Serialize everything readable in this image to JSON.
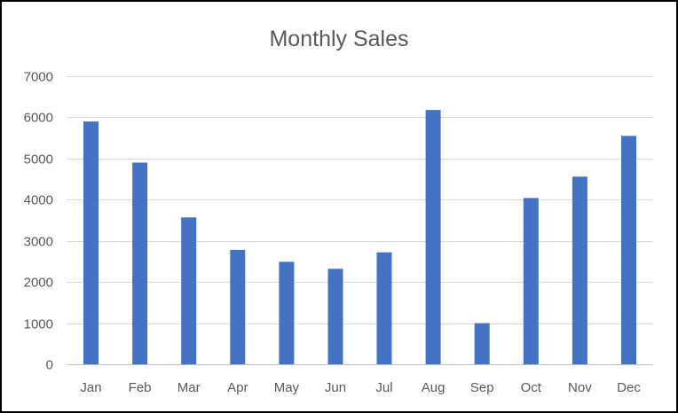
{
  "chart_data": {
    "type": "bar",
    "title": "Monthly Sales",
    "xlabel": "",
    "ylabel": "",
    "categories": [
      "Jan",
      "Feb",
      "Mar",
      "Apr",
      "May",
      "Jun",
      "Jul",
      "Aug",
      "Sep",
      "Oct",
      "Nov",
      "Dec"
    ],
    "values": [
      5900,
      4900,
      3570,
      2780,
      2490,
      2320,
      2720,
      6180,
      1000,
      4040,
      4560,
      5550
    ],
    "ylim": [
      0,
      7000
    ],
    "yticks": [
      0,
      1000,
      2000,
      3000,
      4000,
      5000,
      6000,
      7000
    ],
    "grid": true,
    "legend": "none",
    "bar_color": "#4472C4",
    "grid_color": "#D9D9D9",
    "text_color": "#595959"
  }
}
